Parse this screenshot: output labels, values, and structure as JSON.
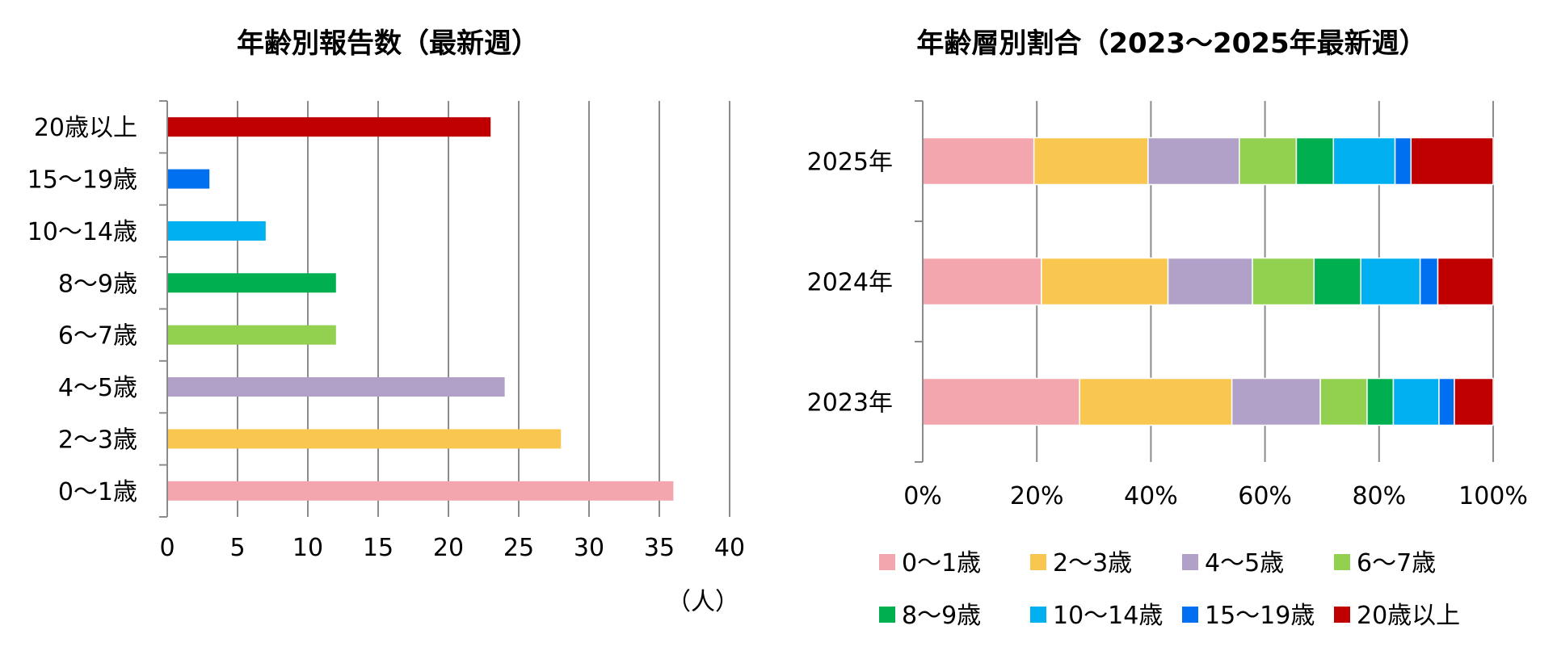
{
  "chart_data": [
    {
      "type": "bar",
      "orientation": "horizontal",
      "title": "年齢別報告数（最新週）",
      "unit_label": "（人）",
      "categories": [
        "20歳以上",
        "15〜19歳",
        "10〜14歳",
        "8〜9歳",
        "6〜7歳",
        "4〜5歳",
        "2〜3歳",
        "0〜1歳"
      ],
      "values": [
        23,
        3,
        7,
        12,
        12,
        24,
        28,
        36
      ],
      "colors": [
        "#C00000",
        "#0070F0",
        "#00B0F0",
        "#00B050",
        "#92D050",
        "#B1A0C7",
        "#F9C74F",
        "#F4A6AE"
      ],
      "xlim": [
        0,
        40
      ],
      "xticks": [
        "0",
        "5",
        "10",
        "15",
        "20",
        "25",
        "30",
        "35",
        "40"
      ],
      "grid": "vertical"
    },
    {
      "type": "bar",
      "orientation": "horizontal",
      "stacked": "percent",
      "title": "年齢層別割合（2023〜2025年最新週）",
      "categories": [
        "2025年",
        "2024年",
        "2023年"
      ],
      "series": [
        {
          "name": "0〜1歳",
          "color": "#F4A6AE",
          "values": [
            19.5,
            20.8,
            27.5
          ]
        },
        {
          "name": "2〜3歳",
          "color": "#F9C74F",
          "values": [
            20.0,
            22.2,
            26.7
          ]
        },
        {
          "name": "4〜5歳",
          "color": "#B1A0C7",
          "values": [
            16.0,
            14.8,
            15.5
          ]
        },
        {
          "name": "6〜7歳",
          "color": "#92D050",
          "values": [
            10.0,
            10.8,
            8.2
          ]
        },
        {
          "name": "8〜9歳",
          "color": "#00B050",
          "values": [
            6.5,
            8.2,
            4.6
          ]
        },
        {
          "name": "10〜14歳",
          "color": "#00B0F0",
          "values": [
            10.8,
            10.4,
            8.0
          ]
        },
        {
          "name": "15〜19歳",
          "color": "#0070F0",
          "values": [
            2.8,
            3.1,
            2.7
          ]
        },
        {
          "name": "20歳以上",
          "color": "#C00000",
          "values": [
            14.4,
            9.7,
            6.8
          ]
        }
      ],
      "xlim": [
        0,
        100
      ],
      "xticks": [
        "0%",
        "20%",
        "40%",
        "60%",
        "80%",
        "100%"
      ],
      "grid": "vertical",
      "legend_position": "bottom"
    }
  ]
}
